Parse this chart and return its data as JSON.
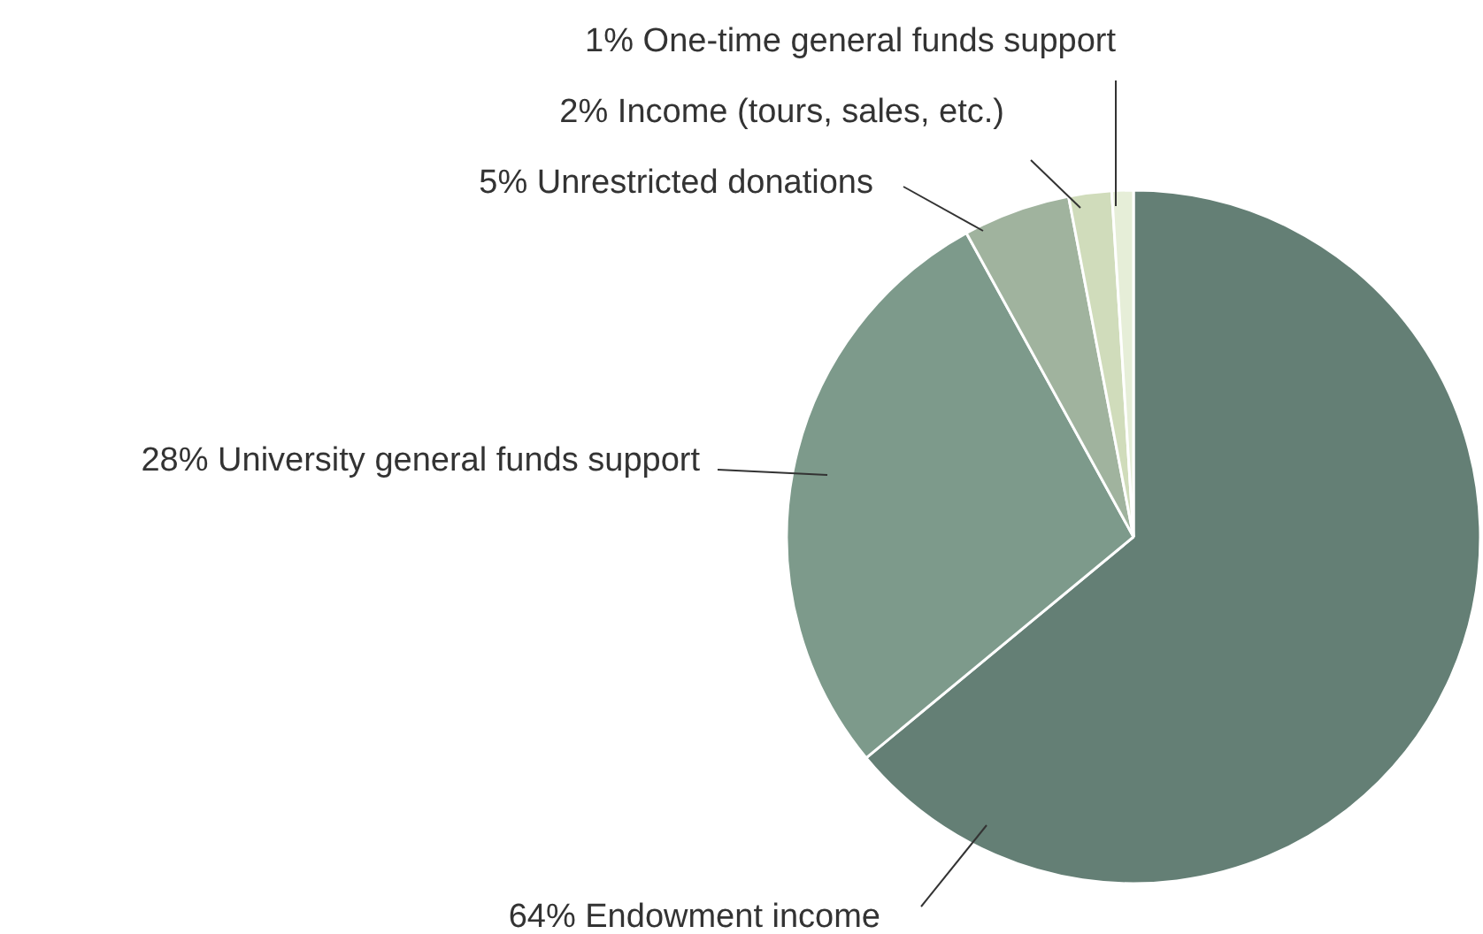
{
  "chart_data": {
    "type": "pie",
    "categories": [
      "Endowment income",
      "University general funds support",
      "Unrestricted donations",
      "Income (tours, sales, etc.)",
      "One-time general funds support"
    ],
    "values": [
      64,
      28,
      5,
      2,
      1
    ],
    "value_labels": [
      "64%",
      "28%",
      "5%",
      "2%",
      "1%"
    ],
    "colors": [
      "#647f75",
      "#7d9a8b",
      "#a0b39e",
      "#d0dcbb",
      "#e6eed8"
    ]
  }
}
